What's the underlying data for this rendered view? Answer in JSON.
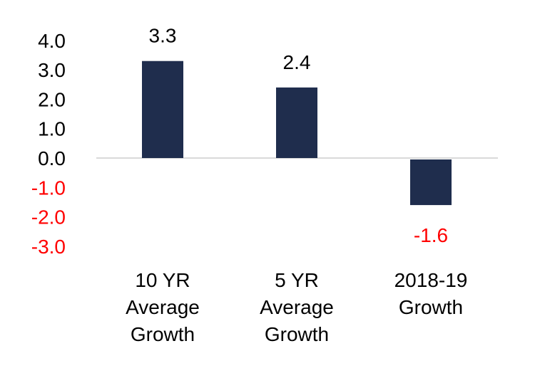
{
  "chart_data": {
    "type": "bar",
    "categories": [
      [
        "10 YR",
        "Average",
        "Growth"
      ],
      [
        "5 YR",
        "Average",
        "Growth"
      ],
      [
        "2018-19",
        "Growth"
      ]
    ],
    "values": [
      3.3,
      2.4,
      -1.6
    ],
    "value_labels": [
      "3.3",
      "2.4",
      "-1.6"
    ],
    "ylim": [
      -3.0,
      4.0
    ],
    "y_ticks": [
      "4.0",
      "3.0",
      "2.0",
      "1.0",
      "0.0",
      "-1.0",
      "-2.0",
      "-3.0"
    ],
    "y_tick_values": [
      4,
      3,
      2,
      1,
      0,
      -1,
      -2,
      -3
    ],
    "title": "",
    "xlabel": "",
    "ylabel": "",
    "grid": false,
    "colors": {
      "bar": "#1f2d4d",
      "positive_text": "#000000",
      "negative_text": "#ff0000",
      "baseline": "#d9d9d9"
    }
  }
}
